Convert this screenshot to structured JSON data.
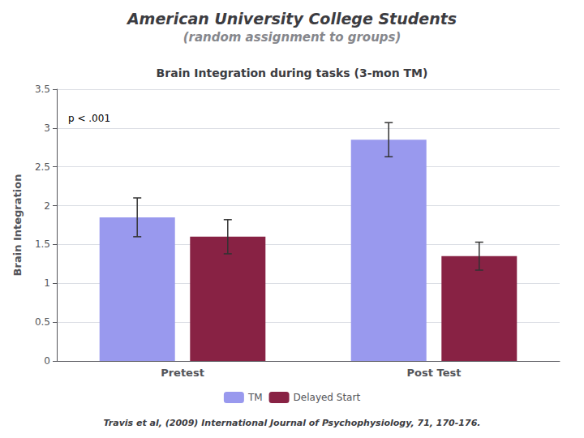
{
  "chart_data": {
    "type": "bar",
    "title": "American University College Students",
    "subtitle": "(random assignment to groups)",
    "plot_title": "Brain Integration during tasks (3-mon TM)",
    "ylabel": "Brain Integration",
    "annotation": "p < .001",
    "footer": "Travis et al, (2009) International Journal of Psychophysiology, 71, 170-176.",
    "categories": [
      "Pretest",
      "Post Test"
    ],
    "series": [
      {
        "name": "TM",
        "color": "#9999ee",
        "values": [
          1.85,
          2.85
        ],
        "errors": [
          0.25,
          0.22
        ]
      },
      {
        "name": "Delayed Start",
        "color": "#882244",
        "values": [
          1.6,
          1.35
        ],
        "errors": [
          0.22,
          0.18
        ]
      }
    ],
    "ylim": [
      0,
      3.5
    ],
    "yticks": [
      0,
      0.5,
      1,
      1.5,
      2,
      2.5,
      3,
      3.5
    ],
    "grid": true,
    "legend": "bottom"
  }
}
